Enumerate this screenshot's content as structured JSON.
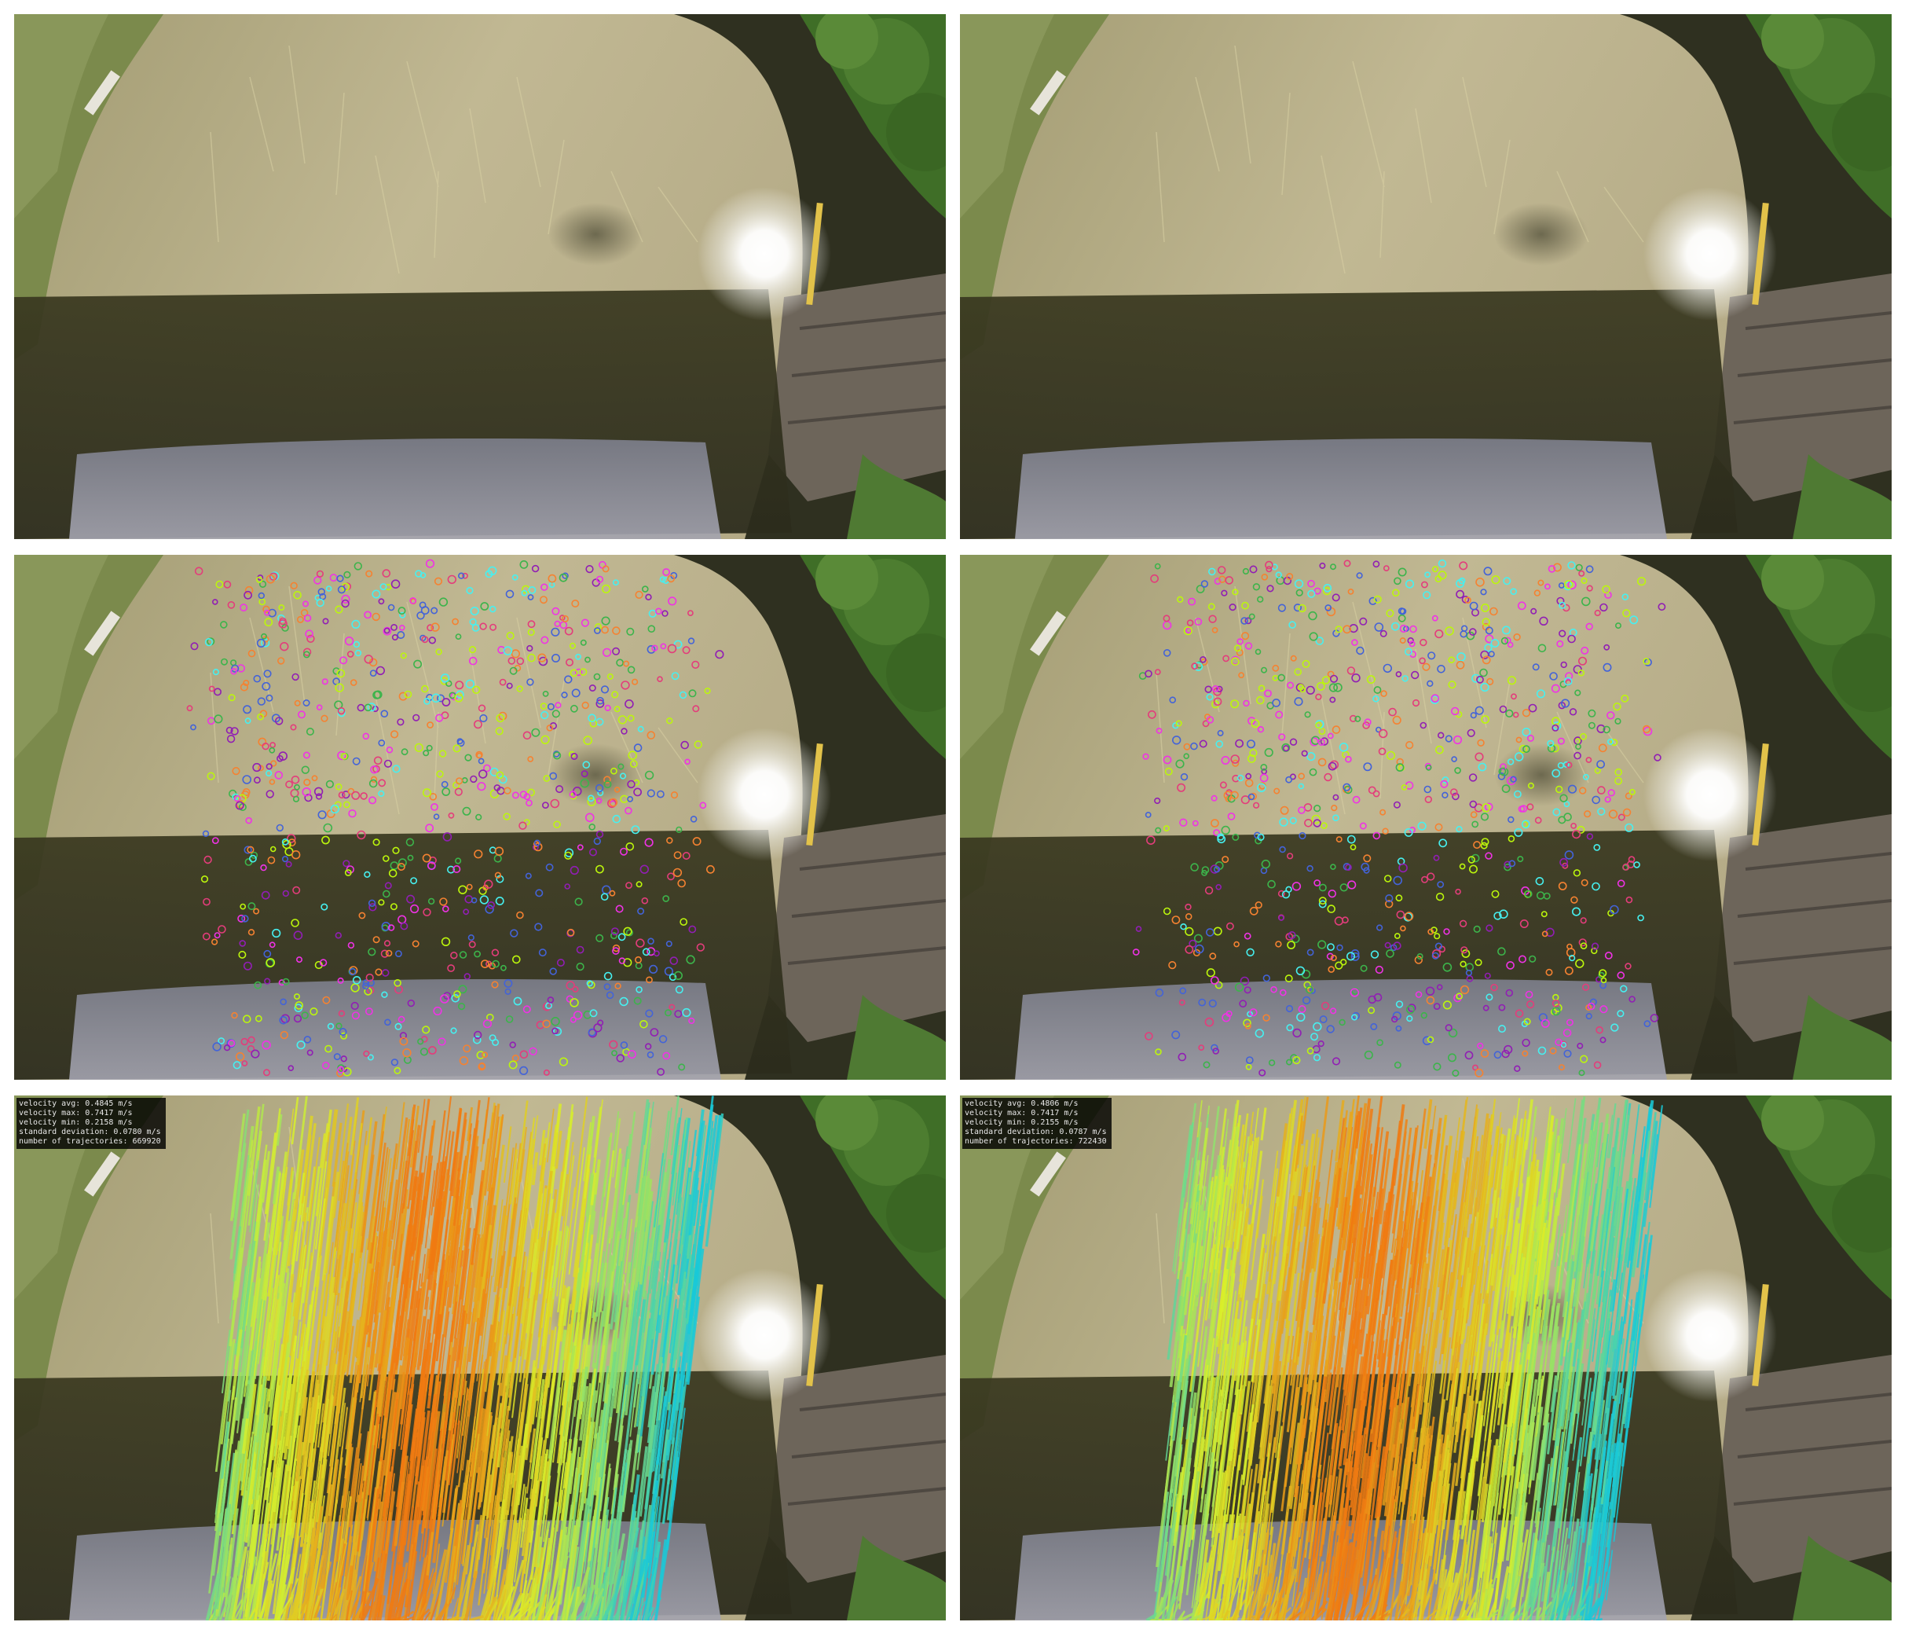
{
  "figure": {
    "layout": "3 rows x 2 columns",
    "rows": [
      {
        "row": "original-frame",
        "panels": [
          "frame-left",
          "frame-right"
        ]
      },
      {
        "row": "detected-features",
        "panels": [
          "features-left",
          "features-right"
        ]
      },
      {
        "row": "velocity-trajectories",
        "panels": [
          "trajectories-left",
          "trajectories-right"
        ]
      }
    ]
  },
  "stats_left": {
    "avg": "velocity avg: 0.4845 m/s",
    "max": "velocity max: 0.7417 m/s",
    "min": "velocity min: 0.2158 m/s",
    "std": "standard deviation: 0.0780 m/s",
    "count": "number of trajectories: 669920"
  },
  "stats_right": {
    "avg": "velocity avg: 0.4806 m/s",
    "max": "velocity max: 0.7417 m/s",
    "min": "velocity min: 0.2155 m/s",
    "std": "standard deviation: 0.0787 m/s",
    "count": "number of trajectories: 722430"
  },
  "colors": {
    "sand": "#b8b089",
    "shadow": "#39361f",
    "water": "#8d8f9c",
    "vegetation": "#3d6a26",
    "velocity_low": "#19c9d8",
    "velocity_mid": "#d9ee2a",
    "velocity_high": "#f07a12"
  }
}
